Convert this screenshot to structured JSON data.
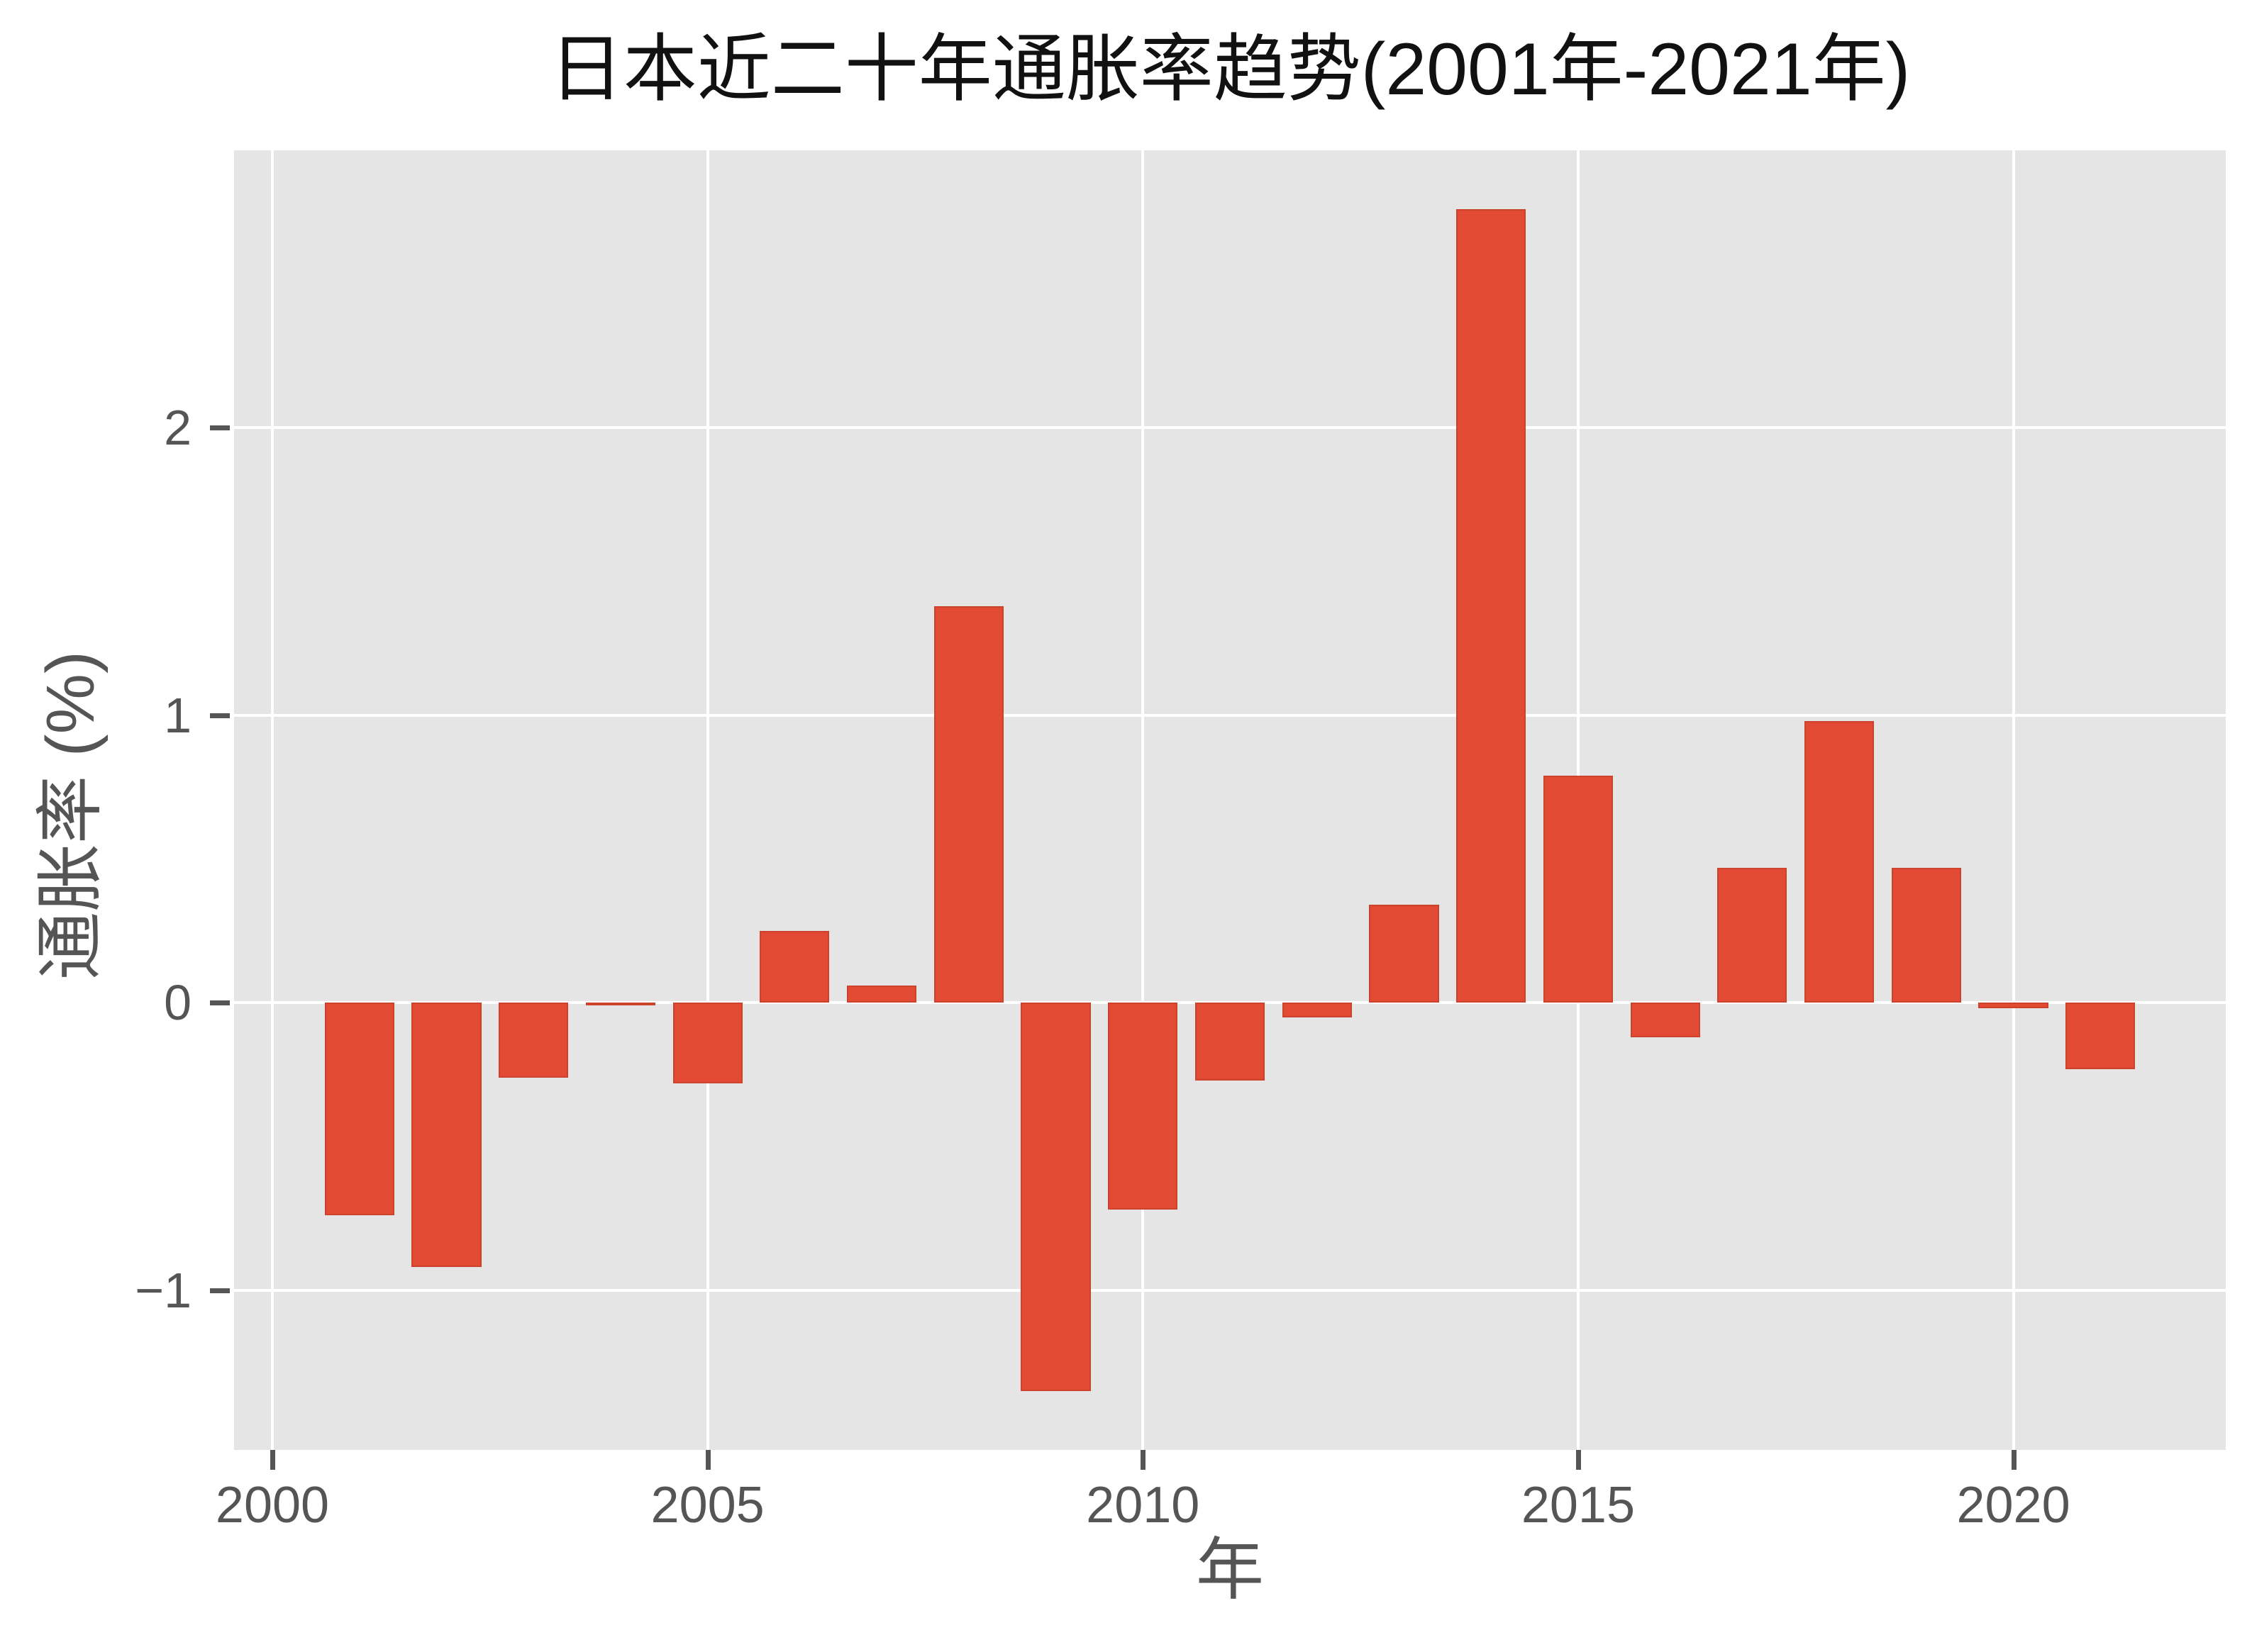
{
  "chart_data": {
    "type": "bar",
    "title": "日本近二十年通胀率趋势(2001年-2021年)",
    "xlabel": "年",
    "ylabel": "通胀率 (%)",
    "categories": [
      2001,
      2002,
      2003,
      2004,
      2005,
      2006,
      2007,
      2008,
      2009,
      2010,
      2011,
      2012,
      2013,
      2014,
      2015,
      2016,
      2017,
      2018,
      2019,
      2020,
      2021
    ],
    "values": [
      -0.74,
      -0.92,
      -0.26,
      -0.01,
      -0.28,
      0.25,
      0.06,
      1.38,
      -1.35,
      -0.72,
      -0.27,
      -0.05,
      0.34,
      2.76,
      0.79,
      -0.12,
      0.47,
      0.98,
      0.47,
      -0.02,
      -0.23
    ],
    "x_ticks": [
      2000,
      2005,
      2010,
      2015,
      2020
    ],
    "y_ticks": [
      -1,
      0,
      1,
      2
    ],
    "xlim": [
      1999.56,
      2022.44
    ],
    "ylim": [
      -1.5555,
      2.9655
    ],
    "bar_width_years": 0.8,
    "grid": true,
    "legend": false,
    "style": "ggplot",
    "colors": {
      "bar": "#E24A33",
      "panel_bg": "#E5E5E5",
      "figure_bg": "#FFFFFF",
      "grid": "#FFFFFF",
      "text": "#555555",
      "title_text": "#111111"
    }
  }
}
